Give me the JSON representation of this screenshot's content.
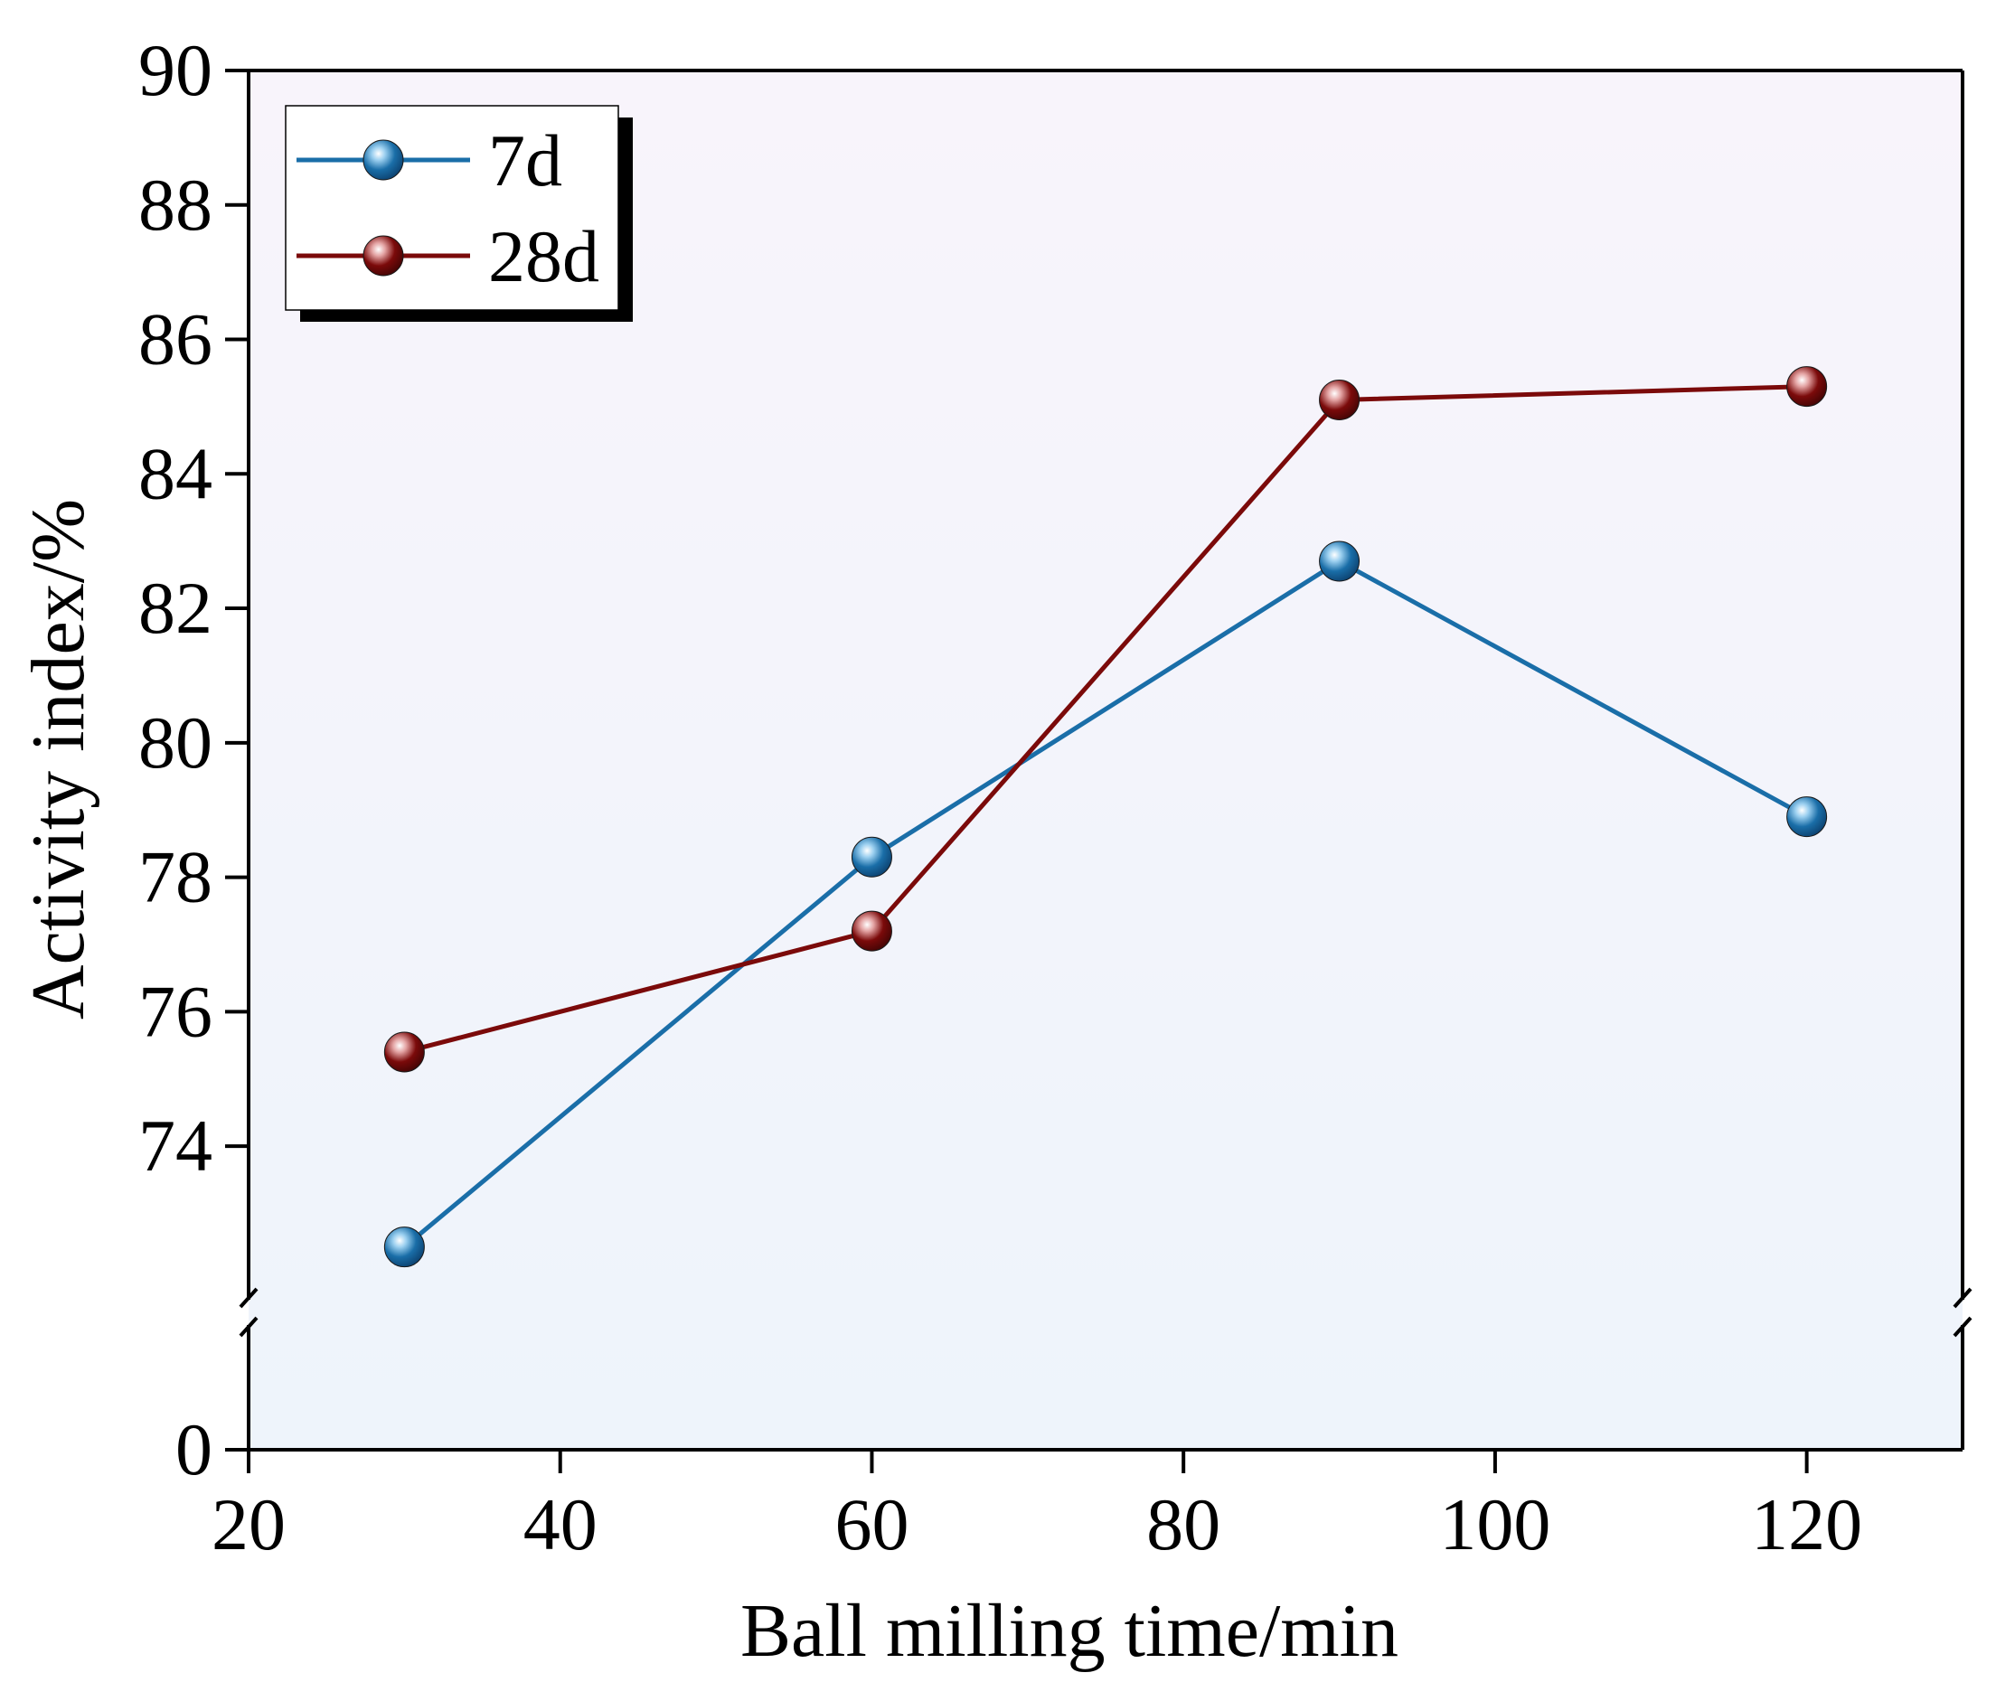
{
  "chart_data": {
    "type": "line",
    "title": "",
    "xlabel": "Ball milling time/min",
    "ylabel": "Activity index/%",
    "xlim": [
      20,
      130
    ],
    "x_ticks": [
      20,
      40,
      60,
      80,
      100,
      120
    ],
    "y_ticks_upper": [
      74,
      76,
      78,
      80,
      82,
      84,
      86,
      88,
      90
    ],
    "y_tick_lower": 0,
    "ylim_upper": [
      72.2,
      90
    ],
    "ylim_lower": [
      0,
      1
    ],
    "axis_break": true,
    "grid": false,
    "legend_position": "top-left",
    "x": [
      30,
      60,
      90,
      120
    ],
    "series": [
      {
        "name": "7d",
        "values": [
          72.5,
          78.3,
          82.7,
          78.9
        ],
        "color": "#1a6ea8"
      },
      {
        "name": "28d",
        "values": [
          75.4,
          77.2,
          85.1,
          85.3
        ],
        "color": "#7b0a0a"
      }
    ],
    "background_top": "#f8f4fb",
    "background_bottom": "#eef4fb"
  }
}
